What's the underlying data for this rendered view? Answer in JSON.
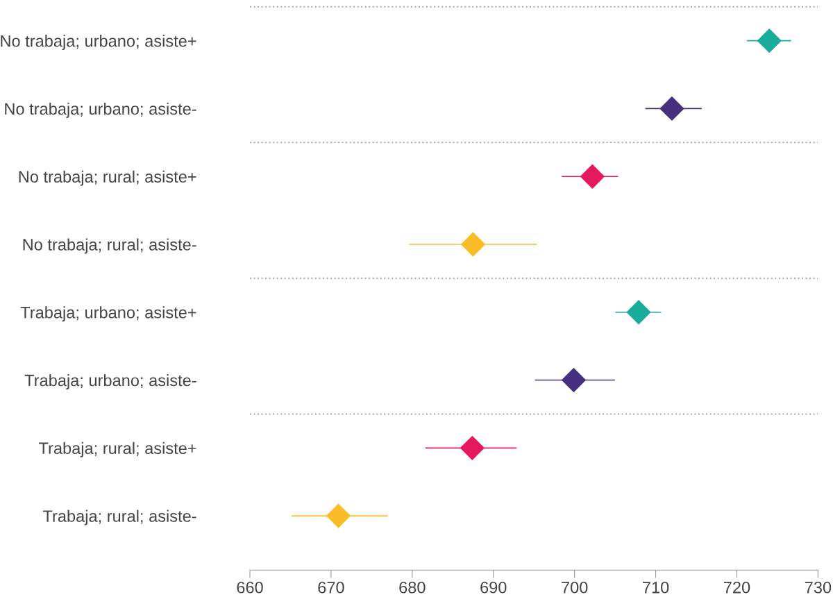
{
  "chart_data": {
    "type": "scatter",
    "orientation": "horizontal",
    "marker": "diamond",
    "categories": [
      "No trabaja; urbano; asiste+",
      "No trabaja; urbano; asiste-",
      "No trabaja; rural; asiste+",
      "No trabaja; rural; asiste-",
      "Trabaja; urbano; asiste+",
      "Trabaja; urbano; asiste-",
      "Trabaja; rural; asiste+",
      "Trabaja; rural; asiste-"
    ],
    "values": [
      724.0,
      712.0,
      702.2,
      687.5,
      707.9,
      699.9,
      687.4,
      670.9
    ],
    "errors": [
      [
        721.3,
        726.6
      ],
      [
        708.8,
        715.6
      ],
      [
        698.5,
        705.3
      ],
      [
        679.7,
        695.3
      ],
      [
        705.1,
        710.6
      ],
      [
        695.2,
        704.9
      ],
      [
        681.7,
        692.8
      ],
      [
        665.2,
        676.9
      ]
    ],
    "colors": [
      "#1aab9b",
      "#45307f",
      "#e5195e",
      "#fbbc2a",
      "#1aab9b",
      "#45307f",
      "#e5195e",
      "#fbbc2a"
    ],
    "xlim": [
      660,
      730
    ],
    "xticks": [
      660,
      670,
      680,
      690,
      700,
      710,
      720,
      730
    ],
    "grid": false
  }
}
